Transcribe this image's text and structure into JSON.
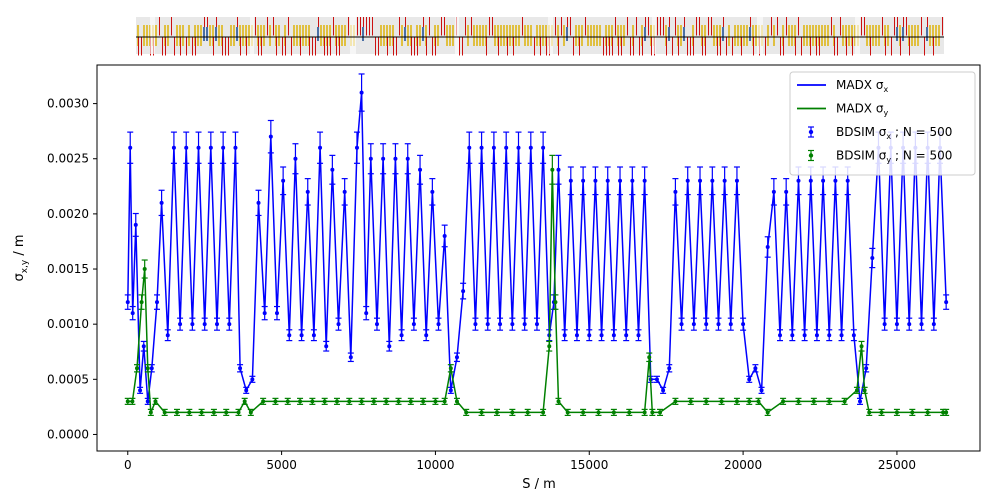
{
  "chart_data": {
    "type": "line",
    "xlabel": "S / m",
    "ylabel": "σx,y / m",
    "ylabel_parts": {
      "sigma": "σ",
      "sub": "x,y",
      "unit": " / m"
    },
    "xlim": [
      -1000,
      27700
    ],
    "ylim": [
      -0.00015,
      0.00335
    ],
    "grid": false,
    "legend_position": "top-right",
    "x_ticks": [
      0,
      5000,
      10000,
      15000,
      20000,
      25000
    ],
    "x_tick_labels": [
      "0",
      "5000",
      "10000",
      "15000",
      "20000",
      "25000"
    ],
    "y_ticks": [
      0.0,
      0.0005,
      0.001,
      0.0015,
      0.002,
      0.0025,
      0.003
    ],
    "y_tick_labels": [
      "0.0000",
      "0.0005",
      "0.0010",
      "0.0015",
      "0.0020",
      "0.0025",
      "0.0030"
    ],
    "legend": [
      {
        "label": "MADX σx",
        "base": "MADX ",
        "sym": "σ",
        "sub": "x",
        "tail": "",
        "style": "line",
        "color": "#0000ff"
      },
      {
        "label": "MADX σy",
        "base": "MADX ",
        "sym": "σ",
        "sub": "y",
        "tail": "",
        "style": "line",
        "color": "#008000"
      },
      {
        "label": "BDSIM σx ; N = 500",
        "base": "BDSIM ",
        "sym": "σ",
        "sub": "x",
        "tail": " ; N = 500",
        "style": "errorbar",
        "color": "#0000ff"
      },
      {
        "label": "BDSIM σy ; N = 500",
        "base": "BDSIM ",
        "sym": "σ",
        "sub": "y",
        "tail": " ; N = 500",
        "style": "errorbar",
        "color": "#008000"
      }
    ],
    "series": [
      {
        "name": "MADX σx",
        "color": "#0000ff",
        "x": [
          0,
          80,
          160,
          260,
          400,
          520,
          650,
          780,
          950,
          1100,
          1300,
          1500,
          1700,
          1900,
          2100,
          2300,
          2500,
          2700,
          2900,
          3100,
          3300,
          3500,
          3650,
          3850,
          4050,
          4250,
          4450,
          4650,
          4850,
          5050,
          5250,
          5450,
          5650,
          5850,
          6050,
          6250,
          6450,
          6650,
          6850,
          7050,
          7250,
          7450,
          7600,
          7750,
          7900,
          8100,
          8300,
          8500,
          8700,
          8900,
          9100,
          9300,
          9500,
          9700,
          9900,
          10100,
          10300,
          10500,
          10700,
          10900,
          11100,
          11300,
          11500,
          11700,
          11900,
          12100,
          12300,
          12500,
          12700,
          12900,
          13100,
          13300,
          13500,
          13700,
          13850,
          14000,
          14200,
          14400,
          14600,
          14800,
          15000,
          15200,
          15400,
          15600,
          15800,
          16000,
          16200,
          16400,
          16600,
          16800,
          17000,
          17200,
          17400,
          17600,
          17800,
          18000,
          18200,
          18400,
          18600,
          18800,
          19000,
          19200,
          19400,
          19600,
          19800,
          20000,
          20200,
          20400,
          20600,
          20800,
          21000,
          21200,
          21400,
          21600,
          21800,
          22000,
          22200,
          22400,
          22600,
          22800,
          23000,
          23200,
          23400,
          23600,
          23800,
          24000,
          24200,
          24400,
          24600,
          24800,
          25000,
          25200,
          25400,
          25600,
          25800,
          26000,
          26200,
          26400,
          26600
        ],
        "y": [
          0.0012,
          0.0026,
          0.0011,
          0.0019,
          0.0004,
          0.0008,
          0.0003,
          0.0006,
          0.0012,
          0.0021,
          0.0009,
          0.0026,
          0.001,
          0.0026,
          0.001,
          0.0026,
          0.001,
          0.0026,
          0.001,
          0.0026,
          0.001,
          0.0026,
          0.0006,
          0.0004,
          0.0005,
          0.0021,
          0.0011,
          0.0027,
          0.0011,
          0.0023,
          0.0009,
          0.0025,
          0.0009,
          0.0022,
          0.0009,
          0.0026,
          0.0008,
          0.0024,
          0.001,
          0.0022,
          0.0007,
          0.0026,
          0.0031,
          0.0011,
          0.0025,
          0.001,
          0.0025,
          0.0008,
          0.0025,
          0.0009,
          0.0025,
          0.001,
          0.0024,
          0.0009,
          0.0022,
          0.001,
          0.0018,
          0.0004,
          0.0007,
          0.0013,
          0.0026,
          0.001,
          0.0026,
          0.001,
          0.0026,
          0.001,
          0.0026,
          0.001,
          0.0026,
          0.001,
          0.0026,
          0.001,
          0.0026,
          0.0009,
          0.0012,
          0.0024,
          0.0009,
          0.0023,
          0.0009,
          0.0023,
          0.0009,
          0.0023,
          0.0009,
          0.0023,
          0.0009,
          0.0023,
          0.0009,
          0.0023,
          0.0009,
          0.0023,
          0.0005,
          0.0005,
          0.0004,
          0.0006,
          0.0022,
          0.001,
          0.0023,
          0.001,
          0.0023,
          0.001,
          0.0023,
          0.001,
          0.0023,
          0.001,
          0.0023,
          0.001,
          0.0005,
          0.0006,
          0.0004,
          0.0017,
          0.0022,
          0.0009,
          0.0022,
          0.0009,
          0.0023,
          0.0009,
          0.0023,
          0.0009,
          0.0023,
          0.0009,
          0.0023,
          0.0009,
          0.0023,
          0.0009,
          0.0003,
          0.0006,
          0.0016,
          0.0026,
          0.001,
          0.0026,
          0.001,
          0.0026,
          0.001,
          0.0026,
          0.001,
          0.0026,
          0.001,
          0.0026,
          0.0012
        ]
      },
      {
        "name": "MADX σy",
        "color": "#008000",
        "x": [
          0,
          150,
          300,
          450,
          550,
          650,
          750,
          900,
          1200,
          1600,
          2000,
          2400,
          2800,
          3200,
          3600,
          3800,
          4000,
          4400,
          4800,
          5200,
          5600,
          6000,
          6400,
          6800,
          7200,
          7600,
          8000,
          8400,
          8800,
          9200,
          9600,
          10000,
          10300,
          10500,
          10700,
          11000,
          11500,
          12000,
          12500,
          13000,
          13500,
          13700,
          13800,
          13900,
          14000,
          14300,
          14800,
          15300,
          15800,
          16300,
          16800,
          16950,
          17050,
          17300,
          17800,
          18300,
          18800,
          19300,
          19800,
          20200,
          20500,
          20800,
          21300,
          21800,
          22300,
          22800,
          23300,
          23700,
          23850,
          23950,
          24100,
          24500,
          25000,
          25500,
          26000,
          26500,
          26600
        ],
        "y": [
          0.0003,
          0.0003,
          0.0006,
          0.0012,
          0.0015,
          0.0006,
          0.0002,
          0.0003,
          0.0002,
          0.0002,
          0.0002,
          0.0002,
          0.0002,
          0.0002,
          0.0002,
          0.0003,
          0.0002,
          0.0003,
          0.0003,
          0.0003,
          0.0003,
          0.0003,
          0.0003,
          0.0003,
          0.0003,
          0.0003,
          0.0003,
          0.0003,
          0.0003,
          0.0003,
          0.0003,
          0.0003,
          0.0003,
          0.0006,
          0.0003,
          0.0002,
          0.0002,
          0.0002,
          0.0002,
          0.0002,
          0.0002,
          0.0008,
          0.0024,
          0.0012,
          0.0003,
          0.0002,
          0.0002,
          0.0002,
          0.0002,
          0.0002,
          0.0002,
          0.0007,
          0.0002,
          0.0002,
          0.0003,
          0.0003,
          0.0003,
          0.0003,
          0.0003,
          0.0003,
          0.0003,
          0.0002,
          0.0003,
          0.0003,
          0.0003,
          0.0003,
          0.0003,
          0.0004,
          0.0008,
          0.0004,
          0.0002,
          0.0002,
          0.0002,
          0.0002,
          0.0002,
          0.0002,
          0.0002
        ]
      }
    ]
  }
}
